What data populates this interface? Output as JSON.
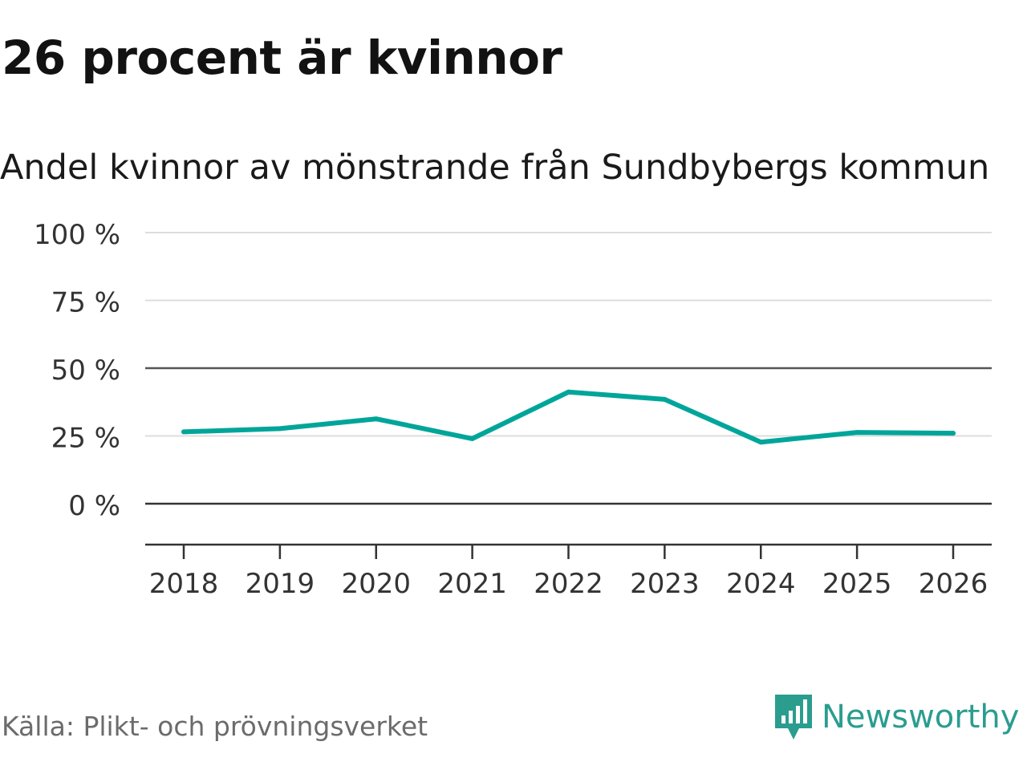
{
  "headline": "26 procent är kvinnor",
  "source": "Källa: Plikt- och prövningsverket",
  "brand": {
    "name": "Newsworthy",
    "logo_icon": "bar-chart-flag-icon"
  },
  "colors": {
    "line": "#00a59a",
    "grid": "#dddddd",
    "baseline": "#333333",
    "brand": "#2a9d8f"
  },
  "chart_data": {
    "type": "line",
    "title": "Andel kvinnor av mönstrande från Sundbybergs kommun",
    "xlabel": "",
    "ylabel": "",
    "x": [
      "2018",
      "2019",
      "2020",
      "2021",
      "2022",
      "2023",
      "2024",
      "2025",
      "2026"
    ],
    "series": [
      {
        "name": "Andel kvinnor",
        "values": [
          26.5,
          27.7,
          31.3,
          24.0,
          41.2,
          38.5,
          22.7,
          26.3,
          26.0
        ]
      }
    ],
    "ylim": [
      -15,
      100
    ],
    "yticks": [
      0,
      25,
      50,
      75,
      100
    ],
    "ytick_labels": [
      "0 %",
      "25 %",
      "50 %",
      "75 %",
      "100 %"
    ],
    "grid": true,
    "legend": "none"
  }
}
